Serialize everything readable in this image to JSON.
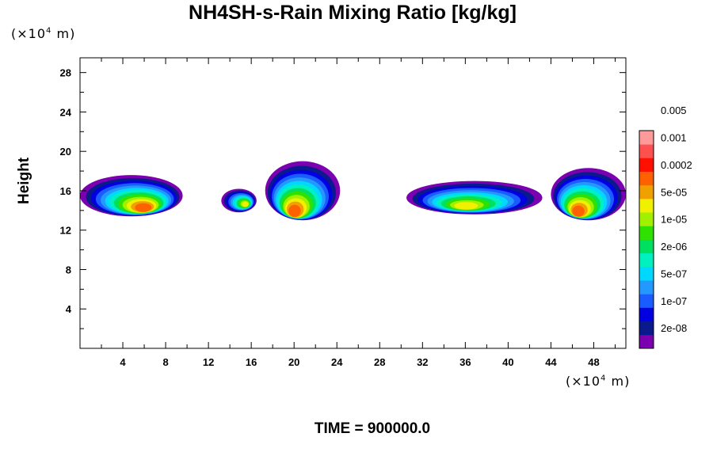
{
  "chart_data": {
    "type": "heatmap",
    "title": "NH4SH-s-Rain Mixing Ratio [kg/kg]",
    "ylabel": "Height",
    "unit_prefix": "(×10",
    "unit_exp": "4",
    "unit_suffix": " m)",
    "time_label": "TIME = 900000.0",
    "xlim": [
      0,
      51
    ],
    "ylim": [
      0,
      29.5
    ],
    "xticks": [
      "4",
      "8",
      "12",
      "16",
      "20",
      "24",
      "28",
      "32",
      "36",
      "40",
      "44",
      "48"
    ],
    "yticks": [
      "4",
      "8",
      "12",
      "16",
      "20",
      "24",
      "28"
    ],
    "colorbar": {
      "colors": [
        "#7a00b0",
        "#0a1a8c",
        "#0000e0",
        "#1a5cff",
        "#2398ff",
        "#00d8ff",
        "#00f0c0",
        "#00e060",
        "#30e000",
        "#a0f000",
        "#f0f000",
        "#f0a000",
        "#ff6000",
        "#ff1000",
        "#ff5050",
        "#ff9a9a"
      ],
      "labels": [
        "2e-08",
        "1e-07",
        "5e-07",
        "2e-06",
        "1e-05",
        "5e-05",
        "0.0002",
        "0.001",
        "0.005"
      ]
    },
    "clouds": [
      {
        "x0": 0.0,
        "x1": 9.6,
        "base": 13.4,
        "top": 17.6,
        "peak_x": 6.0,
        "peak": "high"
      },
      {
        "x0": 13.2,
        "x1": 16.5,
        "base": 13.8,
        "top": 16.2,
        "peak_x": 15.5,
        "peak": "medium"
      },
      {
        "x0": 17.3,
        "x1": 24.3,
        "base": 13.0,
        "top": 19.0,
        "peak_x": 20.0,
        "peak": "high"
      },
      {
        "x0": 30.5,
        "x1": 43.2,
        "base": 13.6,
        "top": 17.0,
        "peak_x": 36.0,
        "peak": "medium"
      },
      {
        "x0": 44.0,
        "x1": 51.0,
        "base": 13.0,
        "top": 18.3,
        "peak_x": 46.5,
        "peak": "high"
      }
    ]
  }
}
